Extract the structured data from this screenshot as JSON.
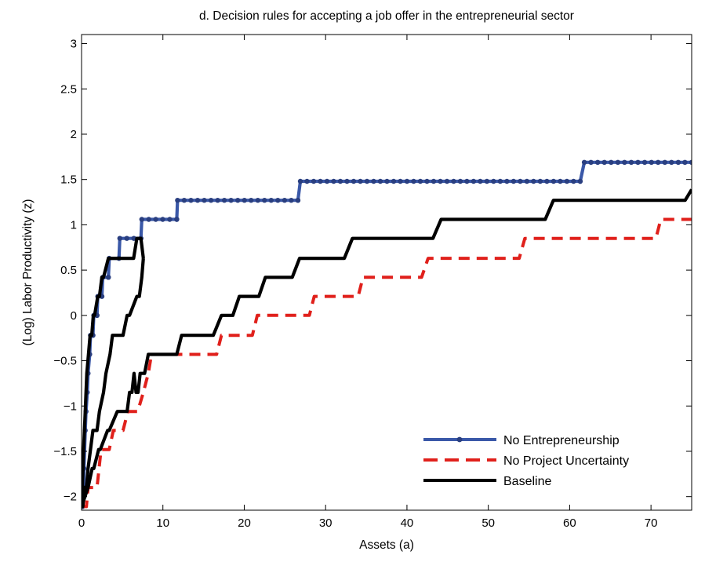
{
  "chart_data": {
    "type": "line",
    "title": "d. Decision rules for accepting a job offer in the entrepreneurial sector",
    "xlabel": "Assets (a)",
    "ylabel": "(Log) Labor Productivity (z)",
    "xlim": [
      0,
      75
    ],
    "ylim": [
      -2.15,
      3.1
    ],
    "xticks": [
      0,
      10,
      20,
      30,
      40,
      50,
      60,
      70
    ],
    "yticks": [
      -2,
      -1.5,
      -1,
      -0.5,
      0,
      0.5,
      1,
      1.5,
      2,
      2.5,
      3
    ],
    "xtick_labels": [
      "0",
      "10",
      "20",
      "30",
      "40",
      "50",
      "60",
      "70"
    ],
    "ytick_labels": [
      "−2",
      "−1.5",
      "−1",
      "−0.5",
      "0",
      "0.5",
      "1",
      "1.5",
      "2",
      "2.5",
      "3"
    ],
    "grid": false,
    "legend_position": "bottom-right",
    "series": [
      {
        "name": "No Entrepreneurship",
        "color": "#3a58a8",
        "style": "solid-dotted",
        "x": [
          0.0,
          0.12,
          0.18,
          0.24,
          0.3,
          0.45,
          0.55,
          0.7,
          0.8,
          1.0,
          1.1,
          1.4,
          1.5,
          1.9,
          2.0,
          2.5,
          2.6,
          3.3,
          3.4,
          4.6,
          4.7,
          7.3,
          7.4,
          11.7,
          11.8,
          26.6,
          26.9,
          61.3,
          61.8,
          75.0
        ],
        "y": [
          -2.11,
          -2.11,
          -1.9,
          -1.9,
          -1.69,
          -1.27,
          -1.06,
          -0.85,
          -0.64,
          -0.43,
          -0.22,
          -0.22,
          0.0,
          0.0,
          0.21,
          0.21,
          0.42,
          0.42,
          0.63,
          0.63,
          0.85,
          0.85,
          1.06,
          1.06,
          1.27,
          1.27,
          1.48,
          1.48,
          1.69,
          1.69
        ]
      },
      {
        "name": "No Project Uncertainty",
        "color": "#e0201b",
        "style": "dashed",
        "x": [
          0.0,
          0.6,
          0.8,
          1.9,
          2.4,
          3.4,
          3.9,
          5.1,
          5.7,
          6.9,
          7.6,
          8.2,
          8.6,
          16.6,
          17.2,
          21.0,
          21.6,
          28.0,
          28.6,
          34.0,
          34.6,
          41.8,
          42.6,
          53.8,
          54.5,
          70.6,
          71.2,
          75.0
        ],
        "y": [
          -2.11,
          -2.11,
          -1.9,
          -1.9,
          -1.48,
          -1.48,
          -1.27,
          -1.27,
          -1.06,
          -1.06,
          -0.85,
          -0.64,
          -0.43,
          -0.43,
          -0.22,
          -0.22,
          0.0,
          0.0,
          0.21,
          0.21,
          0.42,
          0.42,
          0.63,
          0.63,
          0.85,
          0.85,
          1.06,
          1.06
        ]
      },
      {
        "name": "Baseline",
        "color": "#000000",
        "style": "solid",
        "segments": [
          {
            "x": [
              0.0,
              0.1,
              0.25,
              0.45,
              0.65,
              0.85,
              1.05,
              1.25,
              1.45,
              1.6,
              2.0,
              2.2,
              2.5,
              2.7,
              3.3,
              3.5,
              4.1,
              4.4,
              6.4,
              6.8,
              7.3,
              7.6
            ],
            "y": [
              -2.11,
              -1.9,
              -1.48,
              -1.06,
              -0.64,
              -0.43,
              -0.22,
              -0.22,
              0.0,
              0.0,
              0.21,
              0.21,
              0.42,
              0.42,
              0.63,
              0.63,
              0.63,
              0.63,
              0.63,
              0.85,
              0.85,
              0.63
            ]
          },
          {
            "x": [
              7.6,
              7.4,
              7.1,
              6.8,
              5.9,
              5.6,
              5.1,
              4.6,
              3.8,
              3.5,
              3.0,
              2.7,
              2.2,
              1.9,
              1.4,
              1.1,
              0.8,
              0.6,
              0.4,
              0.15,
              0.0
            ],
            "y": [
              0.63,
              0.42,
              0.21,
              0.21,
              0.0,
              0.0,
              -0.22,
              -0.22,
              -0.22,
              -0.43,
              -0.64,
              -0.85,
              -1.06,
              -1.27,
              -1.27,
              -1.48,
              -1.69,
              -1.9,
              -1.9,
              -2.11,
              -2.11
            ]
          },
          {
            "x": [
              0.0,
              0.8,
              1.3,
              1.5,
              2.1,
              2.3,
              3.2,
              3.4,
              4.4,
              4.7,
              5.6,
              5.9,
              6.2,
              6.45,
              6.7,
              6.95,
              7.2,
              7.4,
              7.75,
              8.2,
              8.6,
              11.7,
              12.3,
              16.2,
              17.2,
              18.6,
              19.4,
              21.8,
              22.6,
              25.9,
              26.8,
              32.3,
              33.3,
              43.2,
              44.2,
              57.0,
              58.0,
              74.2,
              75.0
            ],
            "y": [
              -2.11,
              -1.9,
              -1.69,
              -1.69,
              -1.48,
              -1.48,
              -1.27,
              -1.27,
              -1.06,
              -1.06,
              -1.06,
              -0.85,
              -0.85,
              -0.64,
              -0.85,
              -0.85,
              -0.64,
              -0.64,
              -0.64,
              -0.43,
              -0.43,
              -0.43,
              -0.22,
              -0.22,
              0.0,
              0.0,
              0.21,
              0.21,
              0.42,
              0.42,
              0.63,
              0.63,
              0.85,
              0.85,
              1.06,
              1.06,
              1.27,
              1.27,
              1.39
            ]
          }
        ]
      }
    ]
  }
}
